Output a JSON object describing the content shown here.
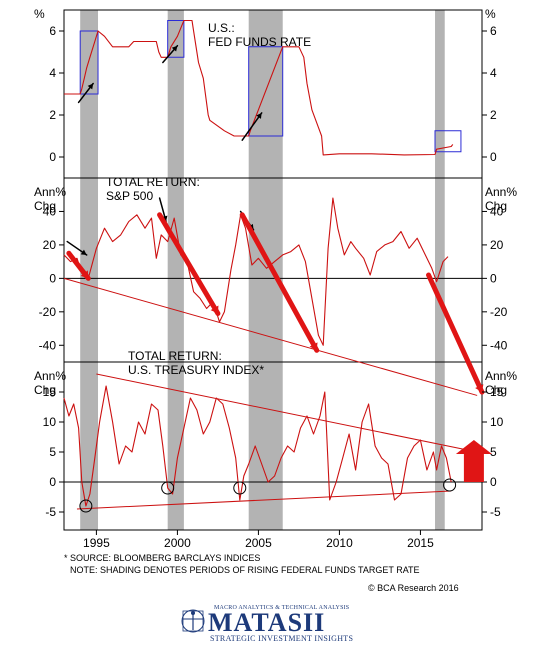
{
  "chart_data": [
    {
      "type": "line",
      "title": "U.S.:",
      "subtitle": "FED FUNDS RATE",
      "unit": "%",
      "ylim": [
        -1,
        7
      ],
      "yticks": [
        0,
        2,
        4,
        6
      ],
      "color": "#cc1111",
      "series": [
        {
          "x": [
            1993.0,
            1994.0,
            1994.1,
            1994.25,
            1994.4,
            1994.6,
            1994.9,
            1995.1,
            1995.5,
            1996.0,
            1997.0,
            1997.3,
            1998.0,
            1998.7,
            1998.85,
            1999.0,
            1999.4,
            1999.6,
            2000.0,
            2000.4,
            2000.9,
            2001.0,
            2001.3,
            2001.6,
            2001.9,
            2002.0,
            2002.9,
            2003.5,
            2004.0,
            2004.4,
            2004.5,
            2005.0,
            2005.5,
            2006.0,
            2006.5,
            2007.0,
            2007.5,
            2007.8,
            2008.0,
            2008.3,
            2008.9,
            2009.0,
            2010.0,
            2012.0,
            2014.0,
            2015.9,
            2016.0,
            2016.9,
            2017.0
          ],
          "y": [
            3.0,
            3.0,
            3.25,
            3.75,
            4.25,
            4.75,
            5.5,
            6.0,
            5.75,
            5.25,
            5.25,
            5.5,
            5.5,
            5.5,
            5.0,
            4.75,
            4.75,
            5.25,
            5.75,
            6.5,
            6.5,
            6.0,
            4.5,
            3.75,
            2.0,
            1.75,
            1.25,
            1.0,
            1.0,
            1.0,
            1.25,
            2.25,
            3.25,
            4.25,
            5.25,
            5.25,
            5.25,
            4.75,
            3.5,
            2.25,
            1.0,
            0.1,
            0.15,
            0.15,
            0.1,
            0.12,
            0.37,
            0.5,
            0.6
          ]
        }
      ],
      "boxes": [
        {
          "x0": 1994.0,
          "x1": 1995.1,
          "y0": 3.0,
          "y1": 6.0
        },
        {
          "x0": 1999.4,
          "x1": 2000.4,
          "y0": 4.75,
          "y1": 6.5
        },
        {
          "x0": 2004.4,
          "x1": 2006.5,
          "y0": 1.0,
          "y1": 5.25
        },
        {
          "x0": 2015.9,
          "x1": 2017.5,
          "y0": 0.25,
          "y1": 1.25
        }
      ],
      "arrows": [
        {
          "x0": 1993.9,
          "y0": 2.6,
          "x1": 1994.8,
          "y1": 3.5
        },
        {
          "x0": 1999.1,
          "y0": 4.5,
          "x1": 2000.0,
          "y1": 5.3
        },
        {
          "x0": 2004.0,
          "y0": 0.8,
          "x1": 2005.2,
          "y1": 2.1
        }
      ]
    },
    {
      "type": "line",
      "title": "TOTAL RETURN:",
      "subtitle": "S&P 500",
      "unit": "Ann% Chg",
      "ylim": [
        -50,
        60
      ],
      "yticks": [
        -40,
        -20,
        0,
        20,
        40
      ],
      "color": "#cc1111",
      "series": [
        {
          "x": [
            1993.0,
            1993.4,
            1993.8,
            1994.1,
            1994.5,
            1995.0,
            1995.5,
            1996.0,
            1996.5,
            1997.0,
            1997.5,
            1998.0,
            1998.4,
            1998.7,
            1999.0,
            1999.4,
            1999.8,
            2000.2,
            2000.6,
            2001.0,
            2001.4,
            2001.8,
            2002.2,
            2002.6,
            2002.9,
            2003.3,
            2003.6,
            2003.9,
            2004.2,
            2004.6,
            2005.0,
            2005.5,
            2006.0,
            2006.5,
            2007.0,
            2007.5,
            2007.9,
            2008.3,
            2008.7,
            2009.0,
            2009.3,
            2009.6,
            2009.9,
            2010.3,
            2010.7,
            2011.0,
            2011.5,
            2011.9,
            2012.3,
            2012.8,
            2013.3,
            2013.8,
            2014.3,
            2014.8,
            2015.3,
            2015.7,
            2016.0,
            2016.4,
            2016.7
          ],
          "y": [
            14,
            10,
            12,
            3,
            0,
            18,
            30,
            22,
            26,
            34,
            38,
            30,
            36,
            12,
            26,
            22,
            36,
            14,
            10,
            -8,
            -12,
            -18,
            -14,
            -26,
            -20,
            5,
            20,
            38,
            30,
            8,
            12,
            6,
            10,
            14,
            16,
            20,
            10,
            -12,
            -34,
            -40,
            18,
            48,
            30,
            14,
            22,
            18,
            12,
            2,
            16,
            20,
            22,
            28,
            18,
            24,
            14,
            6,
            -2,
            10,
            13
          ]
        }
      ],
      "trendlines": [
        {
          "x0": 1993.0,
          "y0": 0,
          "x1": 2018.5,
          "y1": -70
        }
      ],
      "arrows": [
        {
          "x0": 1993.2,
          "y0": 22,
          "x1": 1994.4,
          "y1": 14,
          "style": "black"
        },
        {
          "x0": 1998.9,
          "y0": 48,
          "x1": 1999.3,
          "y1": 34,
          "style": "black"
        },
        {
          "x0": 2003.9,
          "y0": 40,
          "x1": 2004.7,
          "y1": 29,
          "style": "black"
        },
        {
          "x0": 1993.3,
          "y0": 15,
          "x1": 1994.5,
          "y1": 0,
          "style": "red"
        },
        {
          "x0": 1998.9,
          "y0": 38,
          "x1": 2002.5,
          "y1": -21,
          "style": "red"
        },
        {
          "x0": 2004.0,
          "y0": 38,
          "x1": 2008.6,
          "y1": -43,
          "style": "red"
        },
        {
          "x0": 2015.5,
          "y0": 2,
          "x1": 2018.8,
          "y1": -68,
          "style": "red"
        }
      ]
    },
    {
      "type": "line",
      "title": "TOTAL RETURN:",
      "subtitle": "U.S. TREASURY INDEX*",
      "unit": "Ann% Chg",
      "ylim": [
        -8,
        20
      ],
      "yticks": [
        -5,
        0,
        5,
        10,
        15
      ],
      "color": "#cc1111",
      "series": [
        {
          "x": [
            1993.0,
            1993.3,
            1993.6,
            1993.9,
            1994.1,
            1994.35,
            1994.6,
            1994.9,
            1995.2,
            1995.6,
            1996.0,
            1996.4,
            1996.8,
            1997.2,
            1997.6,
            1998.0,
            1998.4,
            1998.8,
            1999.1,
            1999.4,
            1999.7,
            2000.0,
            2000.4,
            2000.8,
            2001.2,
            2001.6,
            2002.0,
            2002.4,
            2002.8,
            2003.2,
            2003.6,
            2003.85,
            2004.1,
            2004.4,
            2004.8,
            2005.2,
            2005.6,
            2006.0,
            2006.4,
            2006.8,
            2007.2,
            2007.6,
            2008.0,
            2008.4,
            2008.8,
            2009.1,
            2009.4,
            2009.8,
            2010.2,
            2010.6,
            2011.0,
            2011.4,
            2011.8,
            2012.2,
            2012.6,
            2013.0,
            2013.4,
            2013.8,
            2014.2,
            2014.6,
            2015.0,
            2015.4,
            2015.8,
            2016.0,
            2016.3,
            2016.6,
            2016.9
          ],
          "y": [
            14,
            11,
            13,
            9,
            0,
            -4,
            -2,
            4,
            10,
            16,
            10,
            3,
            6,
            5,
            10,
            8,
            13,
            12,
            6,
            -1,
            -2,
            4,
            9,
            14,
            12,
            8,
            10,
            14,
            13,
            9,
            4,
            -3,
            1,
            3,
            6,
            3,
            0,
            1,
            4,
            6,
            5,
            9,
            11,
            8,
            11,
            15,
            -3,
            0,
            4,
            8,
            2,
            10,
            13,
            6,
            4,
            3,
            -3,
            -2,
            4,
            6,
            7,
            2,
            5,
            2,
            6,
            4,
            0
          ]
        }
      ],
      "trendlines": [
        {
          "x0": 1995.0,
          "y0": 18,
          "x1": 2018.5,
          "y1": 5
        },
        {
          "x0": 1993.8,
          "y0": -4.5,
          "x1": 2016.9,
          "y1": -1.5
        }
      ],
      "circles": [
        {
          "x": 1994.35,
          "y": -4
        },
        {
          "x": 1999.4,
          "y": -1
        },
        {
          "x": 2003.85,
          "y": -1
        },
        {
          "x": 2016.8,
          "y": -0.5
        }
      ],
      "up_arrow": {
        "x": 2018.3,
        "y0": 0,
        "y1": 7
      }
    }
  ],
  "x_axis": {
    "xlim": [
      1993,
      2018.8
    ],
    "ticks": [
      1995,
      2000,
      2005,
      2010,
      2015
    ],
    "labels": [
      "1995",
      "2000",
      "2005",
      "2010",
      "2015"
    ]
  },
  "shading": [
    {
      "x0": 1994.0,
      "x1": 1995.1
    },
    {
      "x0": 1999.4,
      "x1": 2000.4
    },
    {
      "x0": 2004.4,
      "x1": 2006.5
    },
    {
      "x0": 2015.9,
      "x1": 2016.5
    }
  ],
  "notes": {
    "source": "* SOURCE: BLOOMBERG BARCLAYS INDICES",
    "shading_note": "NOTE: SHADING DENOTES PERIODS OF RISING FEDERAL FUNDS TARGET RATE",
    "copyright": "© BCA Research 2016"
  },
  "logo": {
    "top": "MACRO ANALYTICS & TECHNICAL ANALYSIS",
    "main": "MATASII",
    "sub": "STRATEGIC INVESTMENT INSIGHTS"
  }
}
